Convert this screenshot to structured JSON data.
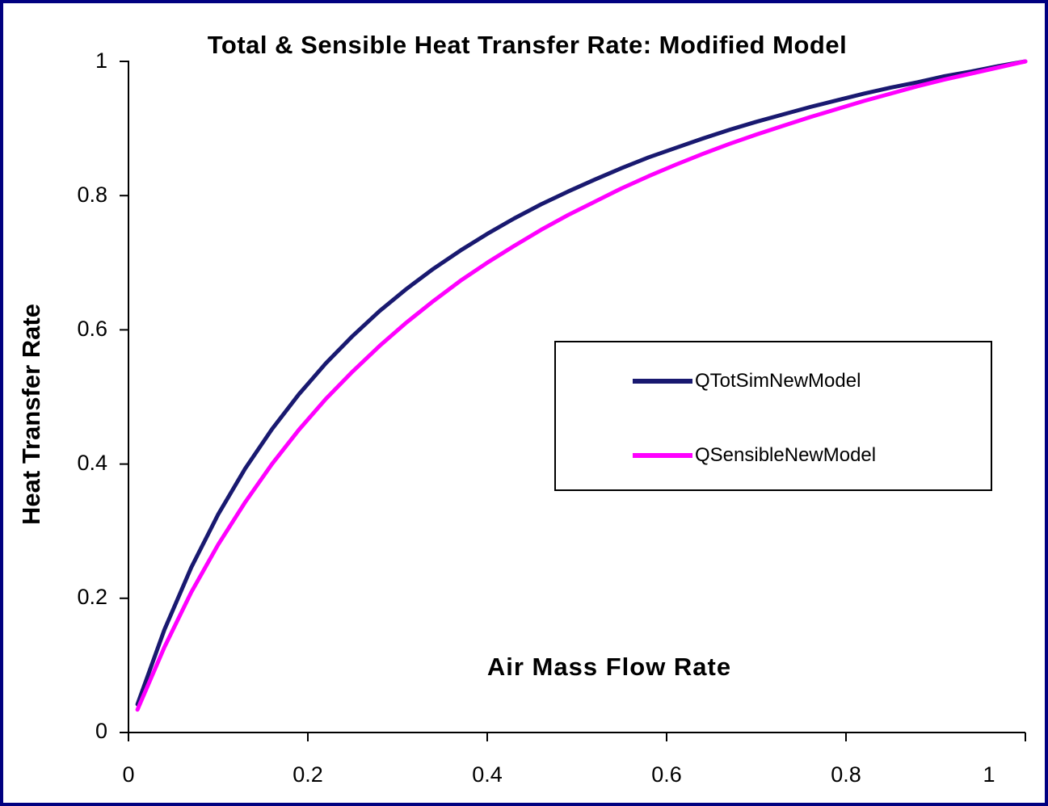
{
  "frame": {
    "border_color": "#000080",
    "background_color": "#ffffff"
  },
  "chart_data": {
    "type": "line",
    "title": "Total & Sensible Heat Transfer Rate: Modified Model",
    "xlabel": "Air Mass Flow Rate",
    "ylabel": "Heat Transfer Rate",
    "xlim": [
      0,
      1
    ],
    "ylim": [
      0,
      1
    ],
    "grid": false,
    "axis_color": "#000000",
    "legend_position": "middle-right",
    "x_ticks": [
      0,
      0.2,
      0.4,
      0.6,
      0.8,
      1
    ],
    "x_tick_labels": [
      "0",
      "0.2",
      "0.4",
      "0.6",
      "0.8",
      "1"
    ],
    "y_ticks": [
      0,
      0.2,
      0.4,
      0.6,
      0.8,
      1
    ],
    "y_tick_labels": [
      "0",
      "0.2",
      "0.4",
      "0.6",
      "0.8",
      "1"
    ],
    "x": [
      0.01,
      0.04,
      0.07,
      0.1,
      0.13,
      0.16,
      0.19,
      0.22,
      0.25,
      0.28,
      0.31,
      0.34,
      0.37,
      0.4,
      0.43,
      0.46,
      0.49,
      0.52,
      0.55,
      0.58,
      0.61,
      0.64,
      0.67,
      0.7,
      0.73,
      0.76,
      0.79,
      0.82,
      0.85,
      0.88,
      0.91,
      0.94,
      0.97,
      1.0
    ],
    "series": [
      {
        "name": "QTotSimNewModel",
        "color": "#191970",
        "values": [
          0.042,
          0.153,
          0.246,
          0.325,
          0.393,
          0.452,
          0.504,
          0.55,
          0.591,
          0.628,
          0.661,
          0.691,
          0.718,
          0.743,
          0.766,
          0.787,
          0.806,
          0.824,
          0.841,
          0.857,
          0.871,
          0.885,
          0.898,
          0.91,
          0.921,
          0.932,
          0.942,
          0.952,
          0.961,
          0.969,
          0.978,
          0.985,
          0.993,
          1.0
        ]
      },
      {
        "name": "QSensibleNewModel",
        "color": "#FF00FF",
        "values": [
          0.034,
          0.127,
          0.209,
          0.28,
          0.343,
          0.4,
          0.451,
          0.497,
          0.538,
          0.576,
          0.611,
          0.643,
          0.673,
          0.7,
          0.725,
          0.749,
          0.771,
          0.791,
          0.811,
          0.829,
          0.846,
          0.862,
          0.877,
          0.891,
          0.904,
          0.917,
          0.929,
          0.941,
          0.952,
          0.963,
          0.973,
          0.982,
          0.991,
          1.0
        ]
      }
    ]
  }
}
